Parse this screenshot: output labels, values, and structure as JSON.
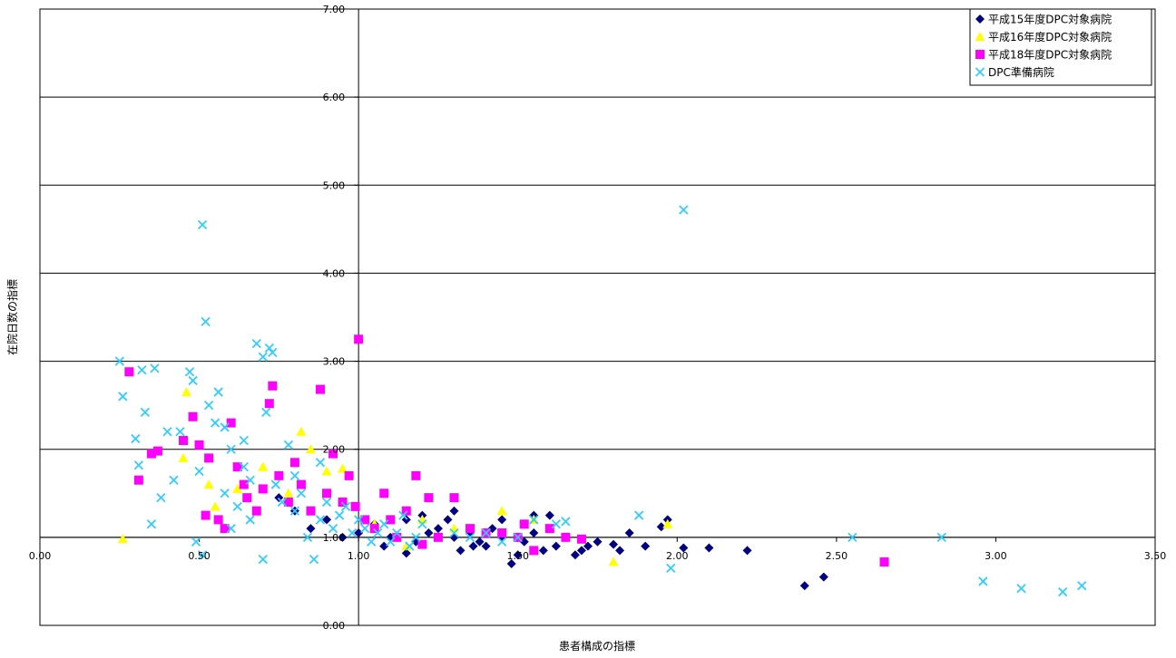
{
  "chart_data": {
    "type": "scatter",
    "xlabel": "患者構成の指標",
    "ylabel": "在院日数の指標",
    "xlim": [
      0,
      3.5
    ],
    "ylim": [
      0,
      7
    ],
    "x_ticks": [
      "0.00",
      "0.50",
      "1.00",
      "1.50",
      "2.00",
      "2.50",
      "3.00",
      "3.50"
    ],
    "y_ticks": [
      "0.00",
      "1.00",
      "2.00",
      "3.00",
      "4.00",
      "5.00",
      "6.00",
      "7.00"
    ],
    "x_tick_values": [
      0,
      0.5,
      1.0,
      1.5,
      2.0,
      2.5,
      3.0,
      3.5
    ],
    "y_tick_values": [
      0,
      1,
      2,
      3,
      4,
      5,
      6,
      7
    ],
    "crosshair": {
      "x": 1.0,
      "y": 1.0
    },
    "grid": "horizontal",
    "legend_position": "top-right",
    "series": [
      {
        "name": "平成15年度DPC対象病院",
        "marker": "diamond",
        "color": "#000080",
        "points": [
          [
            0.75,
            1.45
          ],
          [
            0.8,
            1.3
          ],
          [
            0.85,
            1.1
          ],
          [
            0.9,
            1.2
          ],
          [
            0.95,
            1.0
          ],
          [
            1.0,
            1.05
          ],
          [
            1.05,
            1.15
          ],
          [
            1.08,
            0.9
          ],
          [
            1.1,
            1.0
          ],
          [
            1.15,
            1.2
          ],
          [
            1.18,
            0.95
          ],
          [
            1.2,
            1.25
          ],
          [
            1.22,
            1.05
          ],
          [
            1.25,
            1.1
          ],
          [
            1.28,
            1.2
          ],
          [
            1.3,
            1.0
          ],
          [
            1.32,
            0.85
          ],
          [
            1.35,
            1.05
          ],
          [
            1.38,
            0.95
          ],
          [
            1.4,
            0.9
          ],
          [
            1.42,
            1.1
          ],
          [
            1.45,
            1.0
          ],
          [
            1.48,
            0.7
          ],
          [
            1.5,
            0.8
          ],
          [
            1.52,
            0.95
          ],
          [
            1.55,
            1.05
          ],
          [
            1.58,
            0.85
          ],
          [
            1.6,
            1.25
          ],
          [
            1.62,
            0.9
          ],
          [
            1.65,
            1.0
          ],
          [
            1.68,
            0.8
          ],
          [
            1.72,
            0.9
          ],
          [
            1.75,
            0.95
          ],
          [
            1.8,
            0.92
          ],
          [
            1.82,
            0.85
          ],
          [
            1.85,
            1.05
          ],
          [
            1.9,
            0.9
          ],
          [
            1.95,
            1.12
          ],
          [
            1.97,
            1.2
          ],
          [
            2.02,
            0.88
          ],
          [
            2.1,
            0.88
          ],
          [
            2.22,
            0.85
          ],
          [
            2.4,
            0.45
          ],
          [
            2.46,
            0.55
          ],
          [
            1.3,
            1.3
          ],
          [
            1.45,
            1.2
          ],
          [
            1.15,
            0.82
          ],
          [
            1.36,
            0.9
          ],
          [
            1.55,
            1.25
          ],
          [
            1.7,
            0.85
          ]
        ]
      },
      {
        "name": "平成16年度DPC対象病院",
        "marker": "triangle",
        "color": "#ffff00",
        "points": [
          [
            0.26,
            0.98
          ],
          [
            0.45,
            1.9
          ],
          [
            0.46,
            2.65
          ],
          [
            0.53,
            1.6
          ],
          [
            0.55,
            1.35
          ],
          [
            0.62,
            1.55
          ],
          [
            0.7,
            1.8
          ],
          [
            0.78,
            1.5
          ],
          [
            0.82,
            2.2
          ],
          [
            0.85,
            2.0
          ],
          [
            0.9,
            1.75
          ],
          [
            0.95,
            1.78
          ],
          [
            1.05,
            1.15
          ],
          [
            1.15,
            0.9
          ],
          [
            1.2,
            1.2
          ],
          [
            1.25,
            1.0
          ],
          [
            1.3,
            1.1
          ],
          [
            1.45,
            1.3
          ],
          [
            1.55,
            1.2
          ],
          [
            1.8,
            0.72
          ],
          [
            1.97,
            1.15
          ]
        ]
      },
      {
        "name": "平成18年度DPC対象病院",
        "marker": "square",
        "color": "#ff00ff",
        "points": [
          [
            0.28,
            2.88
          ],
          [
            0.31,
            1.65
          ],
          [
            0.35,
            1.95
          ],
          [
            0.37,
            1.98
          ],
          [
            0.45,
            2.1
          ],
          [
            0.48,
            2.37
          ],
          [
            0.5,
            2.05
          ],
          [
            0.52,
            1.25
          ],
          [
            0.53,
            1.9
          ],
          [
            0.56,
            1.2
          ],
          [
            0.58,
            1.1
          ],
          [
            0.6,
            2.3
          ],
          [
            0.62,
            1.8
          ],
          [
            0.64,
            1.6
          ],
          [
            0.65,
            1.45
          ],
          [
            0.68,
            1.3
          ],
          [
            0.7,
            1.55
          ],
          [
            0.72,
            2.52
          ],
          [
            0.73,
            2.72
          ],
          [
            0.75,
            1.7
          ],
          [
            0.78,
            1.4
          ],
          [
            0.8,
            1.85
          ],
          [
            0.82,
            1.6
          ],
          [
            0.85,
            1.3
          ],
          [
            0.88,
            2.68
          ],
          [
            0.9,
            1.5
          ],
          [
            0.92,
            1.95
          ],
          [
            0.95,
            1.4
          ],
          [
            0.97,
            1.7
          ],
          [
            0.99,
            1.35
          ],
          [
            1.0,
            3.25
          ],
          [
            1.02,
            1.2
          ],
          [
            1.05,
            1.1
          ],
          [
            1.08,
            1.5
          ],
          [
            1.1,
            1.2
          ],
          [
            1.12,
            1.0
          ],
          [
            1.15,
            1.3
          ],
          [
            1.18,
            1.7
          ],
          [
            1.2,
            0.92
          ],
          [
            1.22,
            1.45
          ],
          [
            1.25,
            1.0
          ],
          [
            1.3,
            1.45
          ],
          [
            1.35,
            1.1
          ],
          [
            1.4,
            1.05
          ],
          [
            1.45,
            1.05
          ],
          [
            1.5,
            1.0
          ],
          [
            1.52,
            1.15
          ],
          [
            1.55,
            0.85
          ],
          [
            1.6,
            1.1
          ],
          [
            1.65,
            1.0
          ],
          [
            1.7,
            0.98
          ],
          [
            2.65,
            0.72
          ]
        ]
      },
      {
        "name": "DPC準備病院",
        "marker": "x",
        "color": "#33ccff",
        "points": [
          [
            0.25,
            3.0
          ],
          [
            0.26,
            2.6
          ],
          [
            0.3,
            2.12
          ],
          [
            0.31,
            1.82
          ],
          [
            0.32,
            2.9
          ],
          [
            0.33,
            2.42
          ],
          [
            0.35,
            1.15
          ],
          [
            0.36,
            2.92
          ],
          [
            0.38,
            1.45
          ],
          [
            0.4,
            2.2
          ],
          [
            0.42,
            1.65
          ],
          [
            0.44,
            2.2
          ],
          [
            0.47,
            2.88
          ],
          [
            0.48,
            2.78
          ],
          [
            0.5,
            1.75
          ],
          [
            0.51,
            4.55
          ],
          [
            0.52,
            3.45
          ],
          [
            0.53,
            2.5
          ],
          [
            0.55,
            2.3
          ],
          [
            0.56,
            2.65
          ],
          [
            0.58,
            1.5
          ],
          [
            0.6,
            2.0
          ],
          [
            0.62,
            1.35
          ],
          [
            0.64,
            1.8
          ],
          [
            0.66,
            1.2
          ],
          [
            0.68,
            3.2
          ],
          [
            0.7,
            3.05
          ],
          [
            0.71,
            2.42
          ],
          [
            0.72,
            3.15
          ],
          [
            0.73,
            3.1
          ],
          [
            0.74,
            1.6
          ],
          [
            0.76,
            1.4
          ],
          [
            0.78,
            2.05
          ],
          [
            0.8,
            1.3
          ],
          [
            0.82,
            1.5
          ],
          [
            0.84,
            1.0
          ],
          [
            0.86,
            0.75
          ],
          [
            0.88,
            1.2
          ],
          [
            0.9,
            1.4
          ],
          [
            0.92,
            1.1
          ],
          [
            0.94,
            1.25
          ],
          [
            0.96,
            1.35
          ],
          [
            0.98,
            1.05
          ],
          [
            1.0,
            1.2
          ],
          [
            1.02,
            1.1
          ],
          [
            1.04,
            0.95
          ],
          [
            1.06,
            1.05
          ],
          [
            1.08,
            1.15
          ],
          [
            1.1,
            0.95
          ],
          [
            1.12,
            1.05
          ],
          [
            1.14,
            1.25
          ],
          [
            1.16,
            0.9
          ],
          [
            1.18,
            1.0
          ],
          [
            1.2,
            1.15
          ],
          [
            1.3,
            1.05
          ],
          [
            1.35,
            1.0
          ],
          [
            1.4,
            1.05
          ],
          [
            1.45,
            0.95
          ],
          [
            1.5,
            1.0
          ],
          [
            1.55,
            1.2
          ],
          [
            1.62,
            1.15
          ],
          [
            1.65,
            1.18
          ],
          [
            1.88,
            1.25
          ],
          [
            1.98,
            0.65
          ],
          [
            2.02,
            4.72
          ],
          [
            2.55,
            1.0
          ],
          [
            2.83,
            1.0
          ],
          [
            2.96,
            0.5
          ],
          [
            3.08,
            0.42
          ],
          [
            3.21,
            0.38
          ],
          [
            3.27,
            0.45
          ],
          [
            0.49,
            0.95
          ],
          [
            0.51,
            0.8
          ],
          [
            0.7,
            0.75
          ],
          [
            0.66,
            1.65
          ],
          [
            0.6,
            1.1
          ],
          [
            0.64,
            2.1
          ],
          [
            0.58,
            2.25
          ],
          [
            0.8,
            1.7
          ],
          [
            0.88,
            1.85
          ]
        ]
      }
    ]
  }
}
